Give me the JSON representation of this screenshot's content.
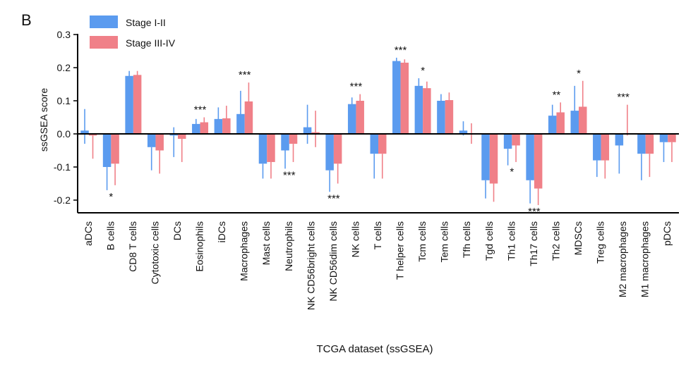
{
  "panel_label": "B",
  "chart_data": {
    "type": "bar",
    "title": "",
    "xlabel": "TCGA dataset (ssGSEA)",
    "ylabel": "ssGSEA score",
    "ylim": [
      -0.22,
      0.3
    ],
    "yticks": [
      0.3,
      0.2,
      0.1,
      0.0,
      -0.1,
      -0.2
    ],
    "ytick_labels": [
      "0.3",
      "0.2",
      "0.1",
      "0.0",
      "-0.1",
      "-0.2"
    ],
    "legend_position": "top-left",
    "colors": {
      "Stage I-II": "#5b9bef",
      "Stage III-IV": "#f08088",
      "axis": "#000000",
      "errorbar_1": "#5b9bef",
      "errorbar_2": "#f08088"
    },
    "categories": [
      "aDCs",
      "B cells",
      "CD8 T cells",
      "Cytotoxic cells",
      "DCs",
      "Eosinophils",
      "iDCs",
      "Macrophages",
      "Mast cells",
      "Neutrophils",
      "NK CD56bright cells",
      "NK CD56dim cells",
      "NK cells",
      "T cells",
      "T helper cells",
      "Tcm cells",
      "Tem cells",
      "Tfh cells",
      "Tgd cells",
      "Th1 cells",
      "Th17 cells",
      "Th2 cells",
      "MDSCs",
      "Treg cells",
      "M2 macrophages",
      "M1 macrophages",
      "pDCs"
    ],
    "series": [
      {
        "name": "Stage I-II",
        "values": [
          0.01,
          -0.1,
          0.175,
          -0.04,
          -0.005,
          0.03,
          0.045,
          0.06,
          -0.09,
          -0.05,
          0.02,
          -0.11,
          0.09,
          -0.06,
          0.22,
          0.145,
          0.1,
          0.01,
          -0.14,
          -0.045,
          -0.14,
          0.055,
          0.07,
          -0.08,
          -0.035,
          -0.06,
          -0.025
        ],
        "err_low": [
          -0.03,
          -0.17,
          0.165,
          -0.11,
          -0.07,
          0.015,
          0.01,
          0.02,
          -0.135,
          -0.105,
          -0.03,
          -0.175,
          0.075,
          -0.135,
          0.21,
          0.13,
          0.075,
          -0.005,
          -0.195,
          -0.095,
          -0.21,
          0.025,
          0.02,
          -0.13,
          -0.12,
          -0.14,
          -0.085
        ],
        "err_high": [
          0.075,
          -0.1,
          0.19,
          -0.04,
          0.02,
          0.045,
          0.08,
          0.13,
          -0.09,
          -0.05,
          0.088,
          -0.11,
          0.11,
          -0.06,
          0.23,
          0.168,
          0.12,
          0.038,
          -0.14,
          -0.045,
          -0.14,
          0.088,
          0.145,
          -0.08,
          -0.035,
          -0.06,
          -0.025
        ]
      },
      {
        "name": "Stage III-IV",
        "values": [
          -0.005,
          -0.09,
          0.178,
          -0.05,
          -0.015,
          0.035,
          0.047,
          0.098,
          -0.085,
          -0.03,
          0.005,
          -0.09,
          0.1,
          -0.06,
          0.215,
          0.138,
          0.102,
          0.002,
          -0.15,
          -0.035,
          -0.165,
          0.065,
          0.082,
          -0.08,
          0.0,
          -0.06,
          -0.025
        ],
        "err_low": [
          -0.075,
          -0.155,
          0.17,
          -0.12,
          -0.085,
          0.02,
          0.005,
          0.06,
          -0.135,
          -0.085,
          -0.04,
          -0.15,
          0.085,
          -0.135,
          0.205,
          0.115,
          0.08,
          -0.03,
          -0.205,
          -0.085,
          -0.215,
          0.04,
          0.005,
          -0.135,
          -0.005,
          -0.13,
          -0.085
        ],
        "err_high": [
          -0.005,
          -0.09,
          0.19,
          -0.05,
          -0.015,
          0.05,
          0.085,
          0.155,
          -0.085,
          -0.03,
          0.07,
          -0.09,
          0.12,
          -0.06,
          0.225,
          0.158,
          0.125,
          0.032,
          -0.15,
          -0.035,
          -0.165,
          0.095,
          0.16,
          -0.08,
          0.088,
          -0.06,
          -0.025
        ]
      }
    ],
    "annotations": [
      {
        "category": "B cells",
        "text": "*",
        "position": "below"
      },
      {
        "category": "Eosinophils",
        "text": "***",
        "position": "above"
      },
      {
        "category": "Macrophages",
        "text": "***",
        "position": "above"
      },
      {
        "category": "Neutrophils",
        "text": "***",
        "position": "below"
      },
      {
        "category": "NK CD56dim cells",
        "text": "***",
        "position": "below"
      },
      {
        "category": "NK cells",
        "text": "***",
        "position": "above"
      },
      {
        "category": "T helper cells",
        "text": "***",
        "position": "above"
      },
      {
        "category": "Tcm cells",
        "text": "*",
        "position": "above"
      },
      {
        "category": "Th1 cells",
        "text": "*",
        "position": "below"
      },
      {
        "category": "Th17 cells",
        "text": "***",
        "position": "below"
      },
      {
        "category": "Th2 cells",
        "text": "**",
        "position": "above"
      },
      {
        "category": "MDSCs",
        "text": "*",
        "position": "above"
      },
      {
        "category": "M2 macrophages",
        "text": "***",
        "position": "above"
      }
    ]
  }
}
